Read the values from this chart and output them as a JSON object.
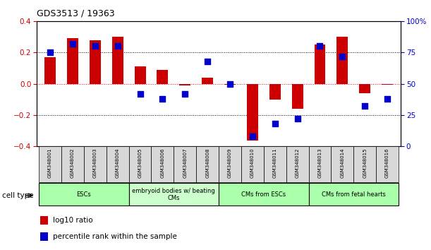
{
  "title": "GDS3513 / 19363",
  "samples": [
    "GSM348001",
    "GSM348002",
    "GSM348003",
    "GSM348004",
    "GSM348005",
    "GSM348006",
    "GSM348007",
    "GSM348008",
    "GSM348009",
    "GSM348010",
    "GSM348011",
    "GSM348012",
    "GSM348013",
    "GSM348014",
    "GSM348015",
    "GSM348016"
  ],
  "log10_ratio": [
    0.17,
    0.29,
    0.28,
    0.3,
    0.11,
    0.09,
    -0.01,
    0.04,
    -0.005,
    -0.365,
    -0.1,
    -0.16,
    0.25,
    0.3,
    -0.06,
    -0.005
  ],
  "percentile_rank": [
    75,
    82,
    80,
    80,
    42,
    38,
    42,
    68,
    50,
    8,
    18,
    22,
    80,
    72,
    32,
    38
  ],
  "ylim": [
    -0.4,
    0.4
  ],
  "y2lim": [
    0,
    100
  ],
  "yticks": [
    -0.4,
    -0.2,
    0.0,
    0.2,
    0.4
  ],
  "y2ticks": [
    0,
    25,
    50,
    75,
    100
  ],
  "bar_color": "#cc0000",
  "dot_color": "#0000cc",
  "cell_groups": [
    {
      "label": "ESCs",
      "start": 0,
      "end": 3,
      "color": "#aaffaa"
    },
    {
      "label": "embryoid bodies w/ beating\nCMs",
      "start": 4,
      "end": 7,
      "color": "#ccffcc"
    },
    {
      "label": "CMs from ESCs",
      "start": 8,
      "end": 11,
      "color": "#aaffaa"
    },
    {
      "label": "CMs from fetal hearts",
      "start": 12,
      "end": 15,
      "color": "#aaffaa"
    }
  ],
  "bar_width": 0.5,
  "dot_size": 30,
  "legend_items": [
    {
      "label": "log10 ratio",
      "color": "#cc0000"
    },
    {
      "label": "percentile rank within the sample",
      "color": "#0000cc"
    }
  ],
  "cell_type_label": "cell type"
}
